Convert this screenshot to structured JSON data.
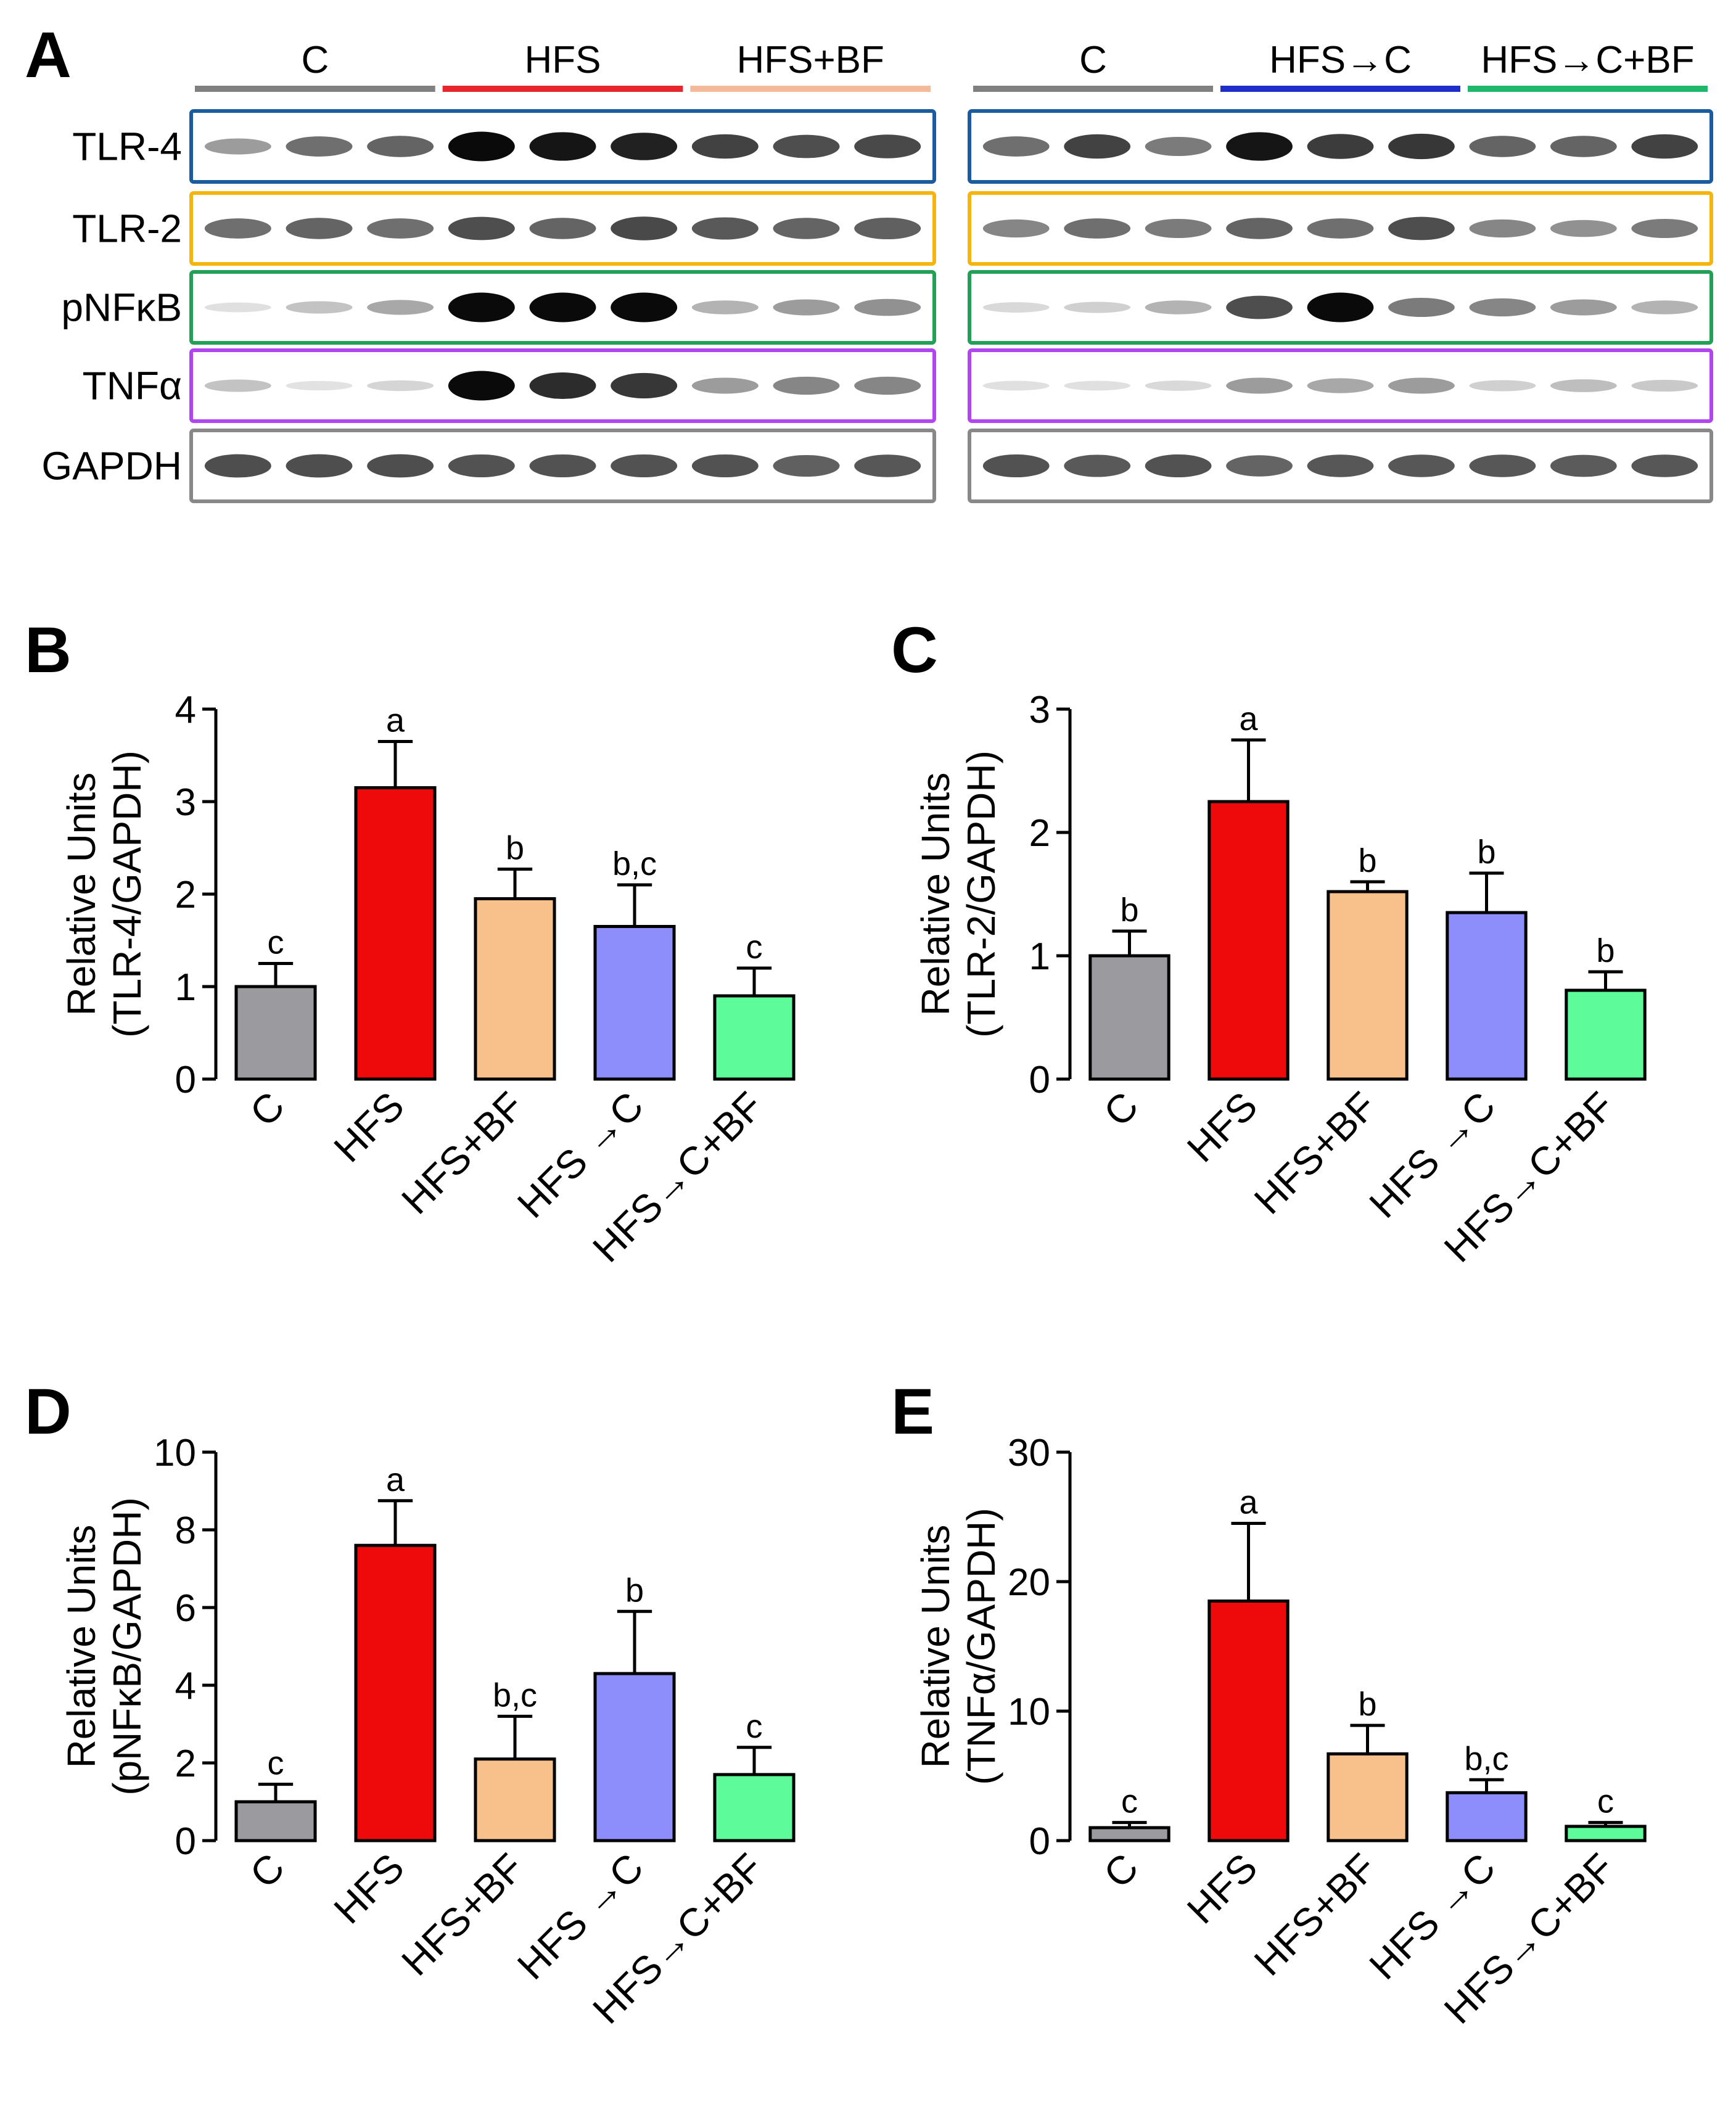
{
  "panel_labels": [
    "A",
    "B",
    "C",
    "D",
    "E"
  ],
  "blot": {
    "left": {
      "groups": [
        {
          "name": "C",
          "color": "#808080"
        },
        {
          "name": "HFS",
          "color": "#e6262c"
        },
        {
          "name": "HFS+BF",
          "color": "#f4b89a"
        }
      ],
      "intensities": {
        "TLR-4": [
          0.35,
          0.55,
          0.6,
          1.0,
          0.95,
          0.9,
          0.75,
          0.7,
          0.72
        ],
        "TLR-2": [
          0.55,
          0.6,
          0.55,
          0.7,
          0.6,
          0.72,
          0.65,
          0.6,
          0.62
        ],
        "pNFκB": [
          0.05,
          0.18,
          0.3,
          1.0,
          1.0,
          1.0,
          0.25,
          0.35,
          0.4
        ],
        "TNFα": [
          0.18,
          0.04,
          0.1,
          1.0,
          0.85,
          0.8,
          0.35,
          0.45,
          0.45
        ],
        "GAPDH": [
          0.7,
          0.7,
          0.7,
          0.68,
          0.68,
          0.68,
          0.68,
          0.62,
          0.66
        ]
      }
    },
    "right": {
      "groups": [
        {
          "name": "C",
          "color": "#808080"
        },
        {
          "name": "HFS→C",
          "color": "#1f2ec8"
        },
        {
          "name": "HFS→C+BF",
          "color": "#1fb86a"
        }
      ],
      "intensities": {
        "TLR-4": [
          0.55,
          0.75,
          0.5,
          0.95,
          0.78,
          0.8,
          0.6,
          0.6,
          0.75
        ],
        "TLR-2": [
          0.45,
          0.55,
          0.5,
          0.6,
          0.55,
          0.7,
          0.45,
          0.4,
          0.5
        ],
        "pNFκB": [
          0.08,
          0.12,
          0.25,
          0.7,
          1.0,
          0.5,
          0.45,
          0.35,
          0.25
        ],
        "TNFα": [
          0.05,
          0.05,
          0.08,
          0.35,
          0.3,
          0.35,
          0.12,
          0.2,
          0.15
        ],
        "GAPDH": [
          0.68,
          0.65,
          0.68,
          0.6,
          0.66,
          0.66,
          0.66,
          0.64,
          0.66
        ]
      }
    },
    "rows": [
      {
        "name": "TLR-4",
        "box_color": "#1a5c9e"
      },
      {
        "name": "TLR-2",
        "box_color": "#f5b50f"
      },
      {
        "name": "pNFκB",
        "box_color": "#22a055"
      },
      {
        "name": "TNFα",
        "box_color": "#b146f0"
      },
      {
        "name": "GAPDH",
        "box_color": "#888888"
      }
    ]
  },
  "chart_data": [
    {
      "panel": "B",
      "type": "bar",
      "categories": [
        "C",
        "HFS",
        "HFS+BF",
        "HFS →C",
        "HFS→C+BF"
      ],
      "values": [
        1.0,
        3.15,
        1.95,
        1.65,
        0.9
      ],
      "errors": [
        0.25,
        0.5,
        0.32,
        0.45,
        0.3
      ],
      "letters": [
        "c",
        "a",
        "b",
        "b,c",
        "c"
      ],
      "colors": [
        "#9b9b9f",
        "#ee0a0a",
        "#f8c08a",
        "#8d8dfb",
        "#5dfb9a"
      ],
      "ylabel": "Relative Units",
      "ylabel2": "(TLR-4/GAPDH)",
      "ylim": [
        0,
        4
      ],
      "yticks": [
        0,
        1,
        2,
        3,
        4
      ]
    },
    {
      "panel": "C",
      "type": "bar",
      "categories": [
        "C",
        "HFS",
        "HFS+BF",
        "HFS →C",
        "HFS→C+BF"
      ],
      "values": [
        1.0,
        2.25,
        1.52,
        1.35,
        0.72
      ],
      "errors": [
        0.2,
        0.5,
        0.08,
        0.32,
        0.15
      ],
      "letters": [
        "b",
        "a",
        "b",
        "b",
        "b"
      ],
      "colors": [
        "#9b9b9f",
        "#ee0a0a",
        "#f8c08a",
        "#8d8dfb",
        "#5dfb9a"
      ],
      "ylabel": "Relative Units",
      "ylabel2": "(TLR-2/GAPDH)",
      "ylim": [
        0,
        3
      ],
      "yticks": [
        0,
        1,
        2,
        3
      ]
    },
    {
      "panel": "D",
      "type": "bar",
      "categories": [
        "C",
        "HFS",
        "HFS+BF",
        "HFS →C",
        "HFS→C+BF"
      ],
      "values": [
        1.0,
        7.6,
        2.1,
        4.3,
        1.7
      ],
      "errors": [
        0.45,
        1.15,
        1.1,
        1.6,
        0.7
      ],
      "letters": [
        "c",
        "a",
        "b,c",
        "b",
        "c"
      ],
      "colors": [
        "#9b9b9f",
        "#ee0a0a",
        "#f8c08a",
        "#8d8dfb",
        "#5dfb9a"
      ],
      "ylabel": "Relative Units",
      "ylabel2": "(pNFκB/GAPDH)",
      "ylim": [
        0,
        10
      ],
      "yticks": [
        0,
        2,
        4,
        6,
        8,
        10
      ]
    },
    {
      "panel": "E",
      "type": "bar",
      "categories": [
        "C",
        "HFS",
        "HFS+BF",
        "HFS →C",
        "HFS→C+BF"
      ],
      "values": [
        1.0,
        18.5,
        6.7,
        3.7,
        1.1
      ],
      "errors": [
        0.4,
        6.0,
        2.2,
        1.0,
        0.3
      ],
      "letters": [
        "c",
        "a",
        "b",
        "b,c",
        "c"
      ],
      "colors": [
        "#9b9b9f",
        "#ee0a0a",
        "#f8c08a",
        "#8d8dfb",
        "#5dfb9a"
      ],
      "ylabel": "Relative Units",
      "ylabel2": "(TNFα/GAPDH)",
      "ylim": [
        0,
        30
      ],
      "yticks": [
        0,
        10,
        20,
        30
      ]
    }
  ]
}
